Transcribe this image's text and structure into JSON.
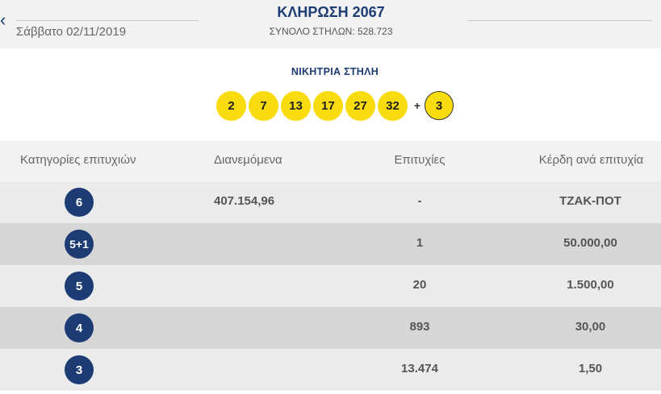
{
  "header": {
    "back_icon": "chevron-left-icon",
    "date": "Σάββατο 02/11/2019",
    "title": "ΚΛΗΡΩΣΗ 2067",
    "total_columns": "ΣΥΝΟΛΟ ΣΤΗΛΩΝ: 528.723"
  },
  "winning": {
    "label": "ΝΙΚΗΤΡΙΑ ΣΤΗΛΗ",
    "numbers": [
      "2",
      "7",
      "13",
      "17",
      "27",
      "32"
    ],
    "plus": "+",
    "joker": "3"
  },
  "table": {
    "headers": {
      "category": "Κατηγορίες επιτυχιών",
      "distributed": "Διανεμόμενα",
      "winners": "Επιτυχίες",
      "prize": "Κέρδη ανά επιτυχία"
    },
    "rows": [
      {
        "category": "6",
        "distributed": "407.154,96",
        "winners": "-",
        "prize": "ΤΖΑΚ-ΠΟΤ"
      },
      {
        "category": "5+1",
        "distributed": "",
        "winners": "1",
        "prize": "50.000,00"
      },
      {
        "category": "5",
        "distributed": "",
        "winners": "20",
        "prize": "1.500,00"
      },
      {
        "category": "4",
        "distributed": "",
        "winners": "893",
        "prize": "30,00"
      },
      {
        "category": "3",
        "distributed": "",
        "winners": "13.474",
        "prize": "1,50"
      }
    ]
  },
  "colors": {
    "brand_navy": "#1d3c73",
    "ball_yellow": "#f9dc10"
  }
}
